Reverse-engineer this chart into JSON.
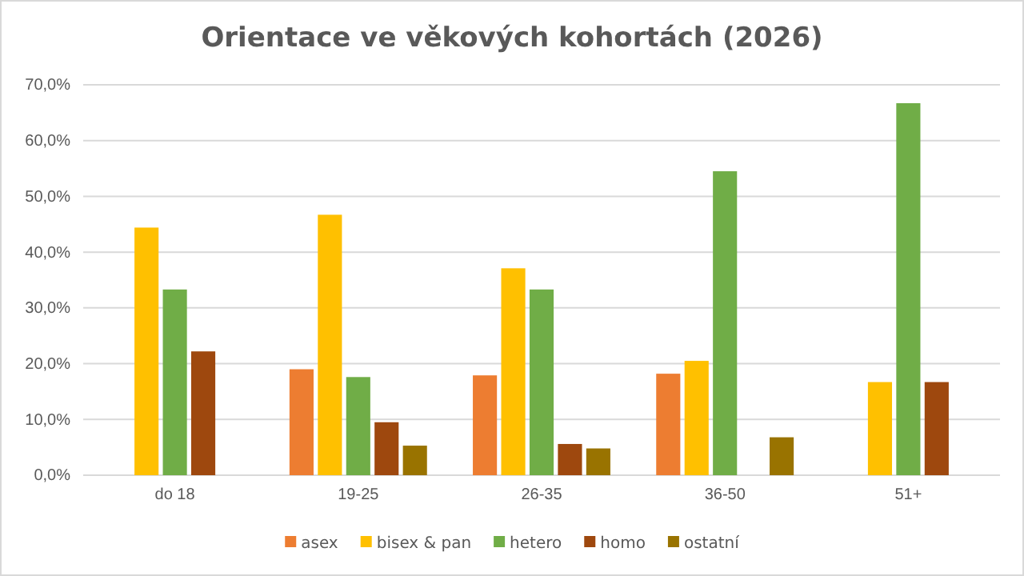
{
  "chart_data": {
    "type": "bar",
    "title": "Orientace ve věkových kohortách (2026)",
    "categories": [
      "do 18",
      "19-25",
      "26-35",
      "36-50",
      "51+"
    ],
    "series": [
      {
        "name": "asex",
        "color": "#ed7d31",
        "values": [
          0,
          19.0,
          17.9,
          18.2,
          0
        ]
      },
      {
        "name": "bisex & pan",
        "color": "#ffc000",
        "values": [
          44.4,
          46.7,
          37.1,
          20.5,
          16.7
        ]
      },
      {
        "name": "hetero",
        "color": "#70ad47",
        "values": [
          33.3,
          17.6,
          33.3,
          54.5,
          66.7
        ]
      },
      {
        "name": "homo",
        "color": "#9e480e",
        "values": [
          22.2,
          9.5,
          5.6,
          0,
          16.7
        ]
      },
      {
        "name": "ostatní",
        "color": "#997300",
        "values": [
          0,
          5.3,
          4.8,
          6.8,
          0
        ]
      }
    ],
    "ylim": [
      0,
      70
    ],
    "yticks": [
      {
        "value": 0,
        "label": "0,0%"
      },
      {
        "value": 10,
        "label": "10,0%"
      },
      {
        "value": 20,
        "label": "20,0%"
      },
      {
        "value": 30,
        "label": "30,0%"
      },
      {
        "value": 40,
        "label": "40,0%"
      },
      {
        "value": 50,
        "label": "50,0%"
      },
      {
        "value": 60,
        "label": "60,0%"
      },
      {
        "value": 70,
        "label": "70,0%"
      }
    ],
    "grid": "y",
    "legend": "bottom"
  }
}
